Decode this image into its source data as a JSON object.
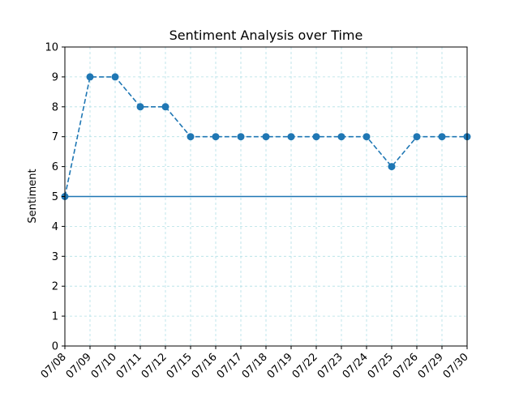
{
  "chart_data": {
    "type": "line",
    "title": "Sentiment Analysis over Time",
    "xlabel": "",
    "ylabel": "Sentiment",
    "categories": [
      "07/08",
      "07/09",
      "07/10",
      "07/11",
      "07/12",
      "07/15",
      "07/16",
      "07/17",
      "07/18",
      "07/19",
      "07/22",
      "07/23",
      "07/24",
      "07/25",
      "07/26",
      "07/29",
      "07/30"
    ],
    "series": [
      {
        "values": [
          5,
          9,
          9,
          8,
          8,
          7,
          7,
          7,
          7,
          7,
          7,
          7,
          7,
          6,
          7,
          7,
          7
        ],
        "color": "#1f77b4",
        "line_style": "dashed",
        "marker": "circle"
      }
    ],
    "reference_line": {
      "y": 5,
      "color": "#1f77b4",
      "line_style": "solid"
    },
    "ylim": [
      0,
      10
    ],
    "yticks": [
      0,
      1,
      2,
      3,
      4,
      5,
      6,
      7,
      8,
      9,
      10
    ],
    "grid": true,
    "grid_color": "#b0e0e6",
    "legend": "none",
    "x_tick_rotation": 45
  }
}
